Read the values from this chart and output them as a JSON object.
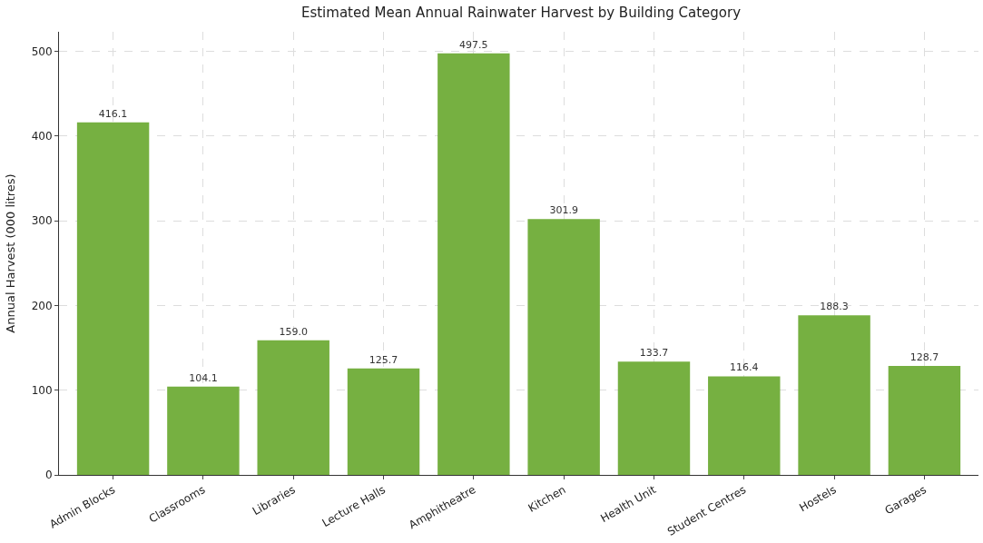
{
  "chart_data": {
    "type": "bar",
    "title": "Estimated Mean Annual Rainwater Harvest by Building Category",
    "ylabel": "Annual Harvest (000 litres)",
    "categories": [
      "Admin Blocks",
      "Classrooms",
      "Libraries",
      "Lecture Halls",
      "Amphitheatre",
      "Kitchen",
      "Health Unit",
      "Student Centres",
      "Hostels",
      "Garages"
    ],
    "values": [
      416.1,
      104.1,
      159.0,
      125.7,
      497.5,
      301.9,
      133.7,
      116.4,
      188.3,
      128.7
    ],
    "value_labels": [
      "416.1",
      "104.1",
      "159.0",
      "125.7",
      "497.5",
      "301.9",
      "133.7",
      "116.4",
      "188.3",
      "128.7"
    ],
    "color": "#76b041",
    "ylim": [
      0,
      523
    ],
    "yticks": [
      0,
      100,
      200,
      300,
      400,
      500
    ],
    "grid": true
  }
}
